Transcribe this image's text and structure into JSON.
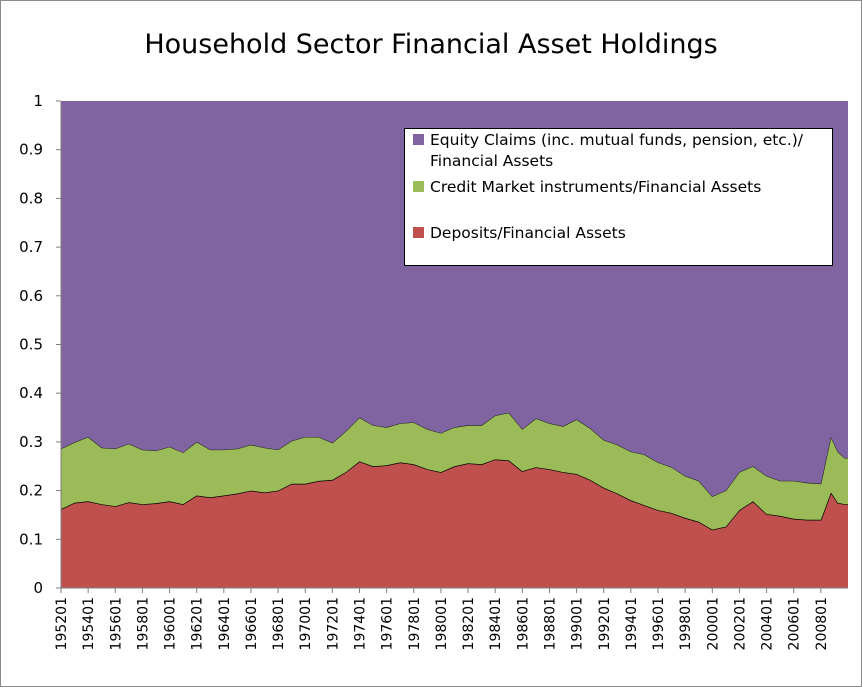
{
  "chart_data": {
    "type": "area",
    "stacked": true,
    "title": "Household Sector Financial Asset Holdings",
    "xlabel": "",
    "ylabel": "",
    "ylim": [
      0,
      1
    ],
    "yticks": [
      "0",
      "0.1",
      "0.2",
      "0.3",
      "0.4",
      "0.5",
      "0.6",
      "0.7",
      "0.8",
      "0.9",
      "1"
    ],
    "xticks": [
      "195201",
      "195401",
      "195601",
      "195801",
      "196001",
      "196201",
      "196401",
      "196601",
      "196801",
      "197001",
      "197201",
      "197401",
      "197601",
      "197801",
      "198001",
      "198201",
      "198401",
      "198601",
      "198801",
      "199001",
      "199201",
      "199401",
      "199601",
      "199801",
      "200001",
      "200201",
      "200401",
      "200601",
      "200801"
    ],
    "x_start": "1952Q1",
    "x_end": "2009Q4",
    "x_frequency": "quarterly",
    "legend_position": "top-right",
    "grid": false,
    "series_x": [
      1952.0,
      1953.0,
      1954.0,
      1955.0,
      1956.0,
      1957.0,
      1958.0,
      1959.0,
      1960.0,
      1961.0,
      1962.0,
      1963.0,
      1964.0,
      1965.0,
      1966.0,
      1967.0,
      1968.0,
      1969.0,
      1970.0,
      1971.0,
      1972.0,
      1973.0,
      1974.0,
      1975.0,
      1976.0,
      1977.0,
      1978.0,
      1979.0,
      1980.0,
      1981.0,
      1982.0,
      1983.0,
      1984.0,
      1985.0,
      1986.0,
      1987.0,
      1988.0,
      1989.0,
      1990.0,
      1991.0,
      1992.0,
      1993.0,
      1994.0,
      1995.0,
      1996.0,
      1997.0,
      1998.0,
      1999.0,
      2000.0,
      2001.0,
      2002.0,
      2003.0,
      2004.0,
      2005.0,
      2006.0,
      2007.0,
      2008.0,
      2008.75,
      2009.25,
      2009.75
    ],
    "series": [
      {
        "name": "Deposits/Financial Assets",
        "color": "#c0504d",
        "values": [
          0.162,
          0.175,
          0.178,
          0.172,
          0.168,
          0.176,
          0.172,
          0.174,
          0.178,
          0.172,
          0.19,
          0.186,
          0.19,
          0.194,
          0.2,
          0.196,
          0.2,
          0.214,
          0.214,
          0.22,
          0.222,
          0.238,
          0.26,
          0.25,
          0.252,
          0.258,
          0.254,
          0.244,
          0.238,
          0.25,
          0.256,
          0.254,
          0.264,
          0.262,
          0.24,
          0.248,
          0.244,
          0.238,
          0.234,
          0.222,
          0.206,
          0.194,
          0.18,
          0.17,
          0.16,
          0.154,
          0.144,
          0.136,
          0.12,
          0.126,
          0.16,
          0.178,
          0.152,
          0.148,
          0.142,
          0.14,
          0.14,
          0.196,
          0.175,
          0.172
        ]
      },
      {
        "name": "Credit Market instruments/Financial Assets",
        "color": "#9bbb59",
        "values": [
          0.124,
          0.124,
          0.132,
          0.116,
          0.118,
          0.12,
          0.112,
          0.108,
          0.112,
          0.106,
          0.11,
          0.098,
          0.094,
          0.092,
          0.094,
          0.092,
          0.084,
          0.088,
          0.096,
          0.09,
          0.076,
          0.084,
          0.09,
          0.084,
          0.078,
          0.08,
          0.086,
          0.082,
          0.08,
          0.08,
          0.078,
          0.08,
          0.09,
          0.098,
          0.086,
          0.1,
          0.094,
          0.094,
          0.112,
          0.106,
          0.098,
          0.1,
          0.1,
          0.104,
          0.098,
          0.094,
          0.086,
          0.084,
          0.068,
          0.074,
          0.078,
          0.072,
          0.078,
          0.072,
          0.078,
          0.076,
          0.074,
          0.114,
          0.105,
          0.095
        ]
      },
      {
        "name": "Equity Claims (inc. mutual funds, pension, etc.)/ Financial Assets",
        "color": "#8064a2",
        "values": [
          0.714,
          0.701,
          0.69,
          0.712,
          0.714,
          0.704,
          0.716,
          0.718,
          0.71,
          0.722,
          0.7,
          0.716,
          0.716,
          0.714,
          0.706,
          0.712,
          0.716,
          0.698,
          0.69,
          0.69,
          0.702,
          0.678,
          0.65,
          0.666,
          0.67,
          0.662,
          0.66,
          0.674,
          0.682,
          0.67,
          0.666,
          0.666,
          0.646,
          0.64,
          0.674,
          0.652,
          0.662,
          0.668,
          0.654,
          0.672,
          0.696,
          0.706,
          0.72,
          0.726,
          0.742,
          0.752,
          0.77,
          0.78,
          0.812,
          0.8,
          0.762,
          0.75,
          0.77,
          0.78,
          0.78,
          0.784,
          0.786,
          0.69,
          0.72,
          0.733
        ]
      }
    ]
  },
  "legend": [
    {
      "label": "Equity Claims (inc. mutual funds, pension, etc.)/ Financial Assets",
      "color": "#8064a2"
    },
    {
      "label": "Credit Market instruments/Financial Assets",
      "color": "#9bbb59"
    },
    {
      "label": "Deposits/Financial Assets",
      "color": "#c0504d"
    }
  ]
}
